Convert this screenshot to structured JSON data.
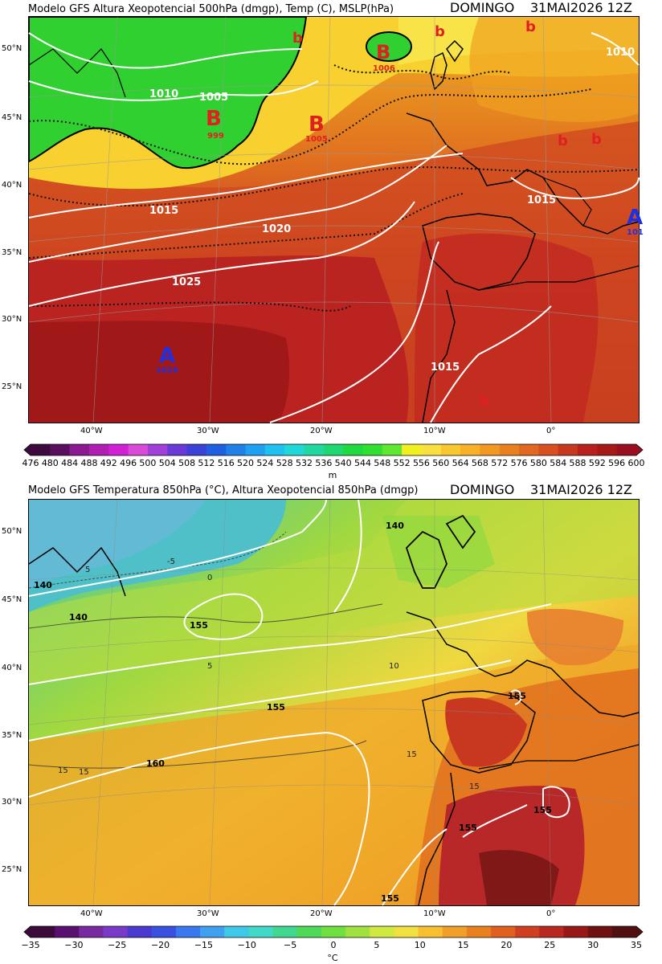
{
  "panels": [
    {
      "id": "z500",
      "left_title": "Modelo GFS   Altura Xeopotencial 500hPa (dmgp), Temp (C), MSLP(hPa)",
      "day": "DOMINGO",
      "date": "31MAI2026 12Z",
      "lat_labels": [
        "50°N",
        "45°N",
        "40°N",
        "35°N",
        "30°N",
        "25°N"
      ],
      "lon_labels": [
        "40°W",
        "30°W",
        "20°W",
        "10°W",
        "0°"
      ],
      "isobar_labels": [
        "1010",
        "1005",
        "1015",
        "1020",
        "1025",
        "1015",
        "1015",
        "1010"
      ],
      "pressure_centers": [
        {
          "letter": "B",
          "value": "999"
        },
        {
          "letter": "B",
          "value": "1005"
        },
        {
          "letter": "B",
          "value": "1006"
        },
        {
          "letter": "A",
          "value": "1019"
        },
        {
          "letter": "A",
          "value": "101"
        },
        {
          "letter": "b",
          "value": ""
        },
        {
          "letter": "b",
          "value": ""
        },
        {
          "letter": "b",
          "value": ""
        },
        {
          "letter": "b",
          "value": ""
        },
        {
          "letter": "b",
          "value": ""
        },
        {
          "letter": "b",
          "value": ""
        }
      ],
      "colorbar": {
        "ticks": [
          "476",
          "480",
          "484",
          "488",
          "492",
          "496",
          "500",
          "504",
          "508",
          "512",
          "516",
          "520",
          "524",
          "528",
          "532",
          "536",
          "540",
          "544",
          "548",
          "552",
          "556",
          "560",
          "564",
          "568",
          "572",
          "576",
          "580",
          "584",
          "588",
          "592",
          "596",
          "600"
        ],
        "unit": "m",
        "colors": [
          "#3d0a3e",
          "#5a0f5e",
          "#8a1a8e",
          "#b01eb4",
          "#d21fd6",
          "#d84ad8",
          "#a040d8",
          "#6a3ad8",
          "#3a40d8",
          "#2060e0",
          "#2080e8",
          "#20a0f0",
          "#20c0f0",
          "#20d8d8",
          "#20d8a0",
          "#20d870",
          "#20d840",
          "#30e030",
          "#60e830",
          "#f0f020",
          "#f8e040",
          "#f8c830",
          "#f8b028",
          "#f09820",
          "#e88020",
          "#e06820",
          "#d85020",
          "#c83820",
          "#b82020",
          "#a81818",
          "#981020"
        ]
      }
    },
    {
      "id": "t850",
      "left_title": "Modelo GFS   Temperatura 850hPa (°C), Altura Xeopotencial 850hPa (dmgp)",
      "day": "DOMINGO",
      "date": "31MAI2026 12Z",
      "lat_labels": [
        "50°N",
        "45°N",
        "40°N",
        "35°N",
        "30°N",
        "25°N"
      ],
      "lon_labels": [
        "40°W",
        "30°W",
        "20°W",
        "10°W",
        "0°"
      ],
      "contour_labels": [
        "140",
        "140",
        "140",
        "155",
        "155",
        "160",
        "155",
        "155",
        "155",
        "155",
        "-5",
        "5",
        "0",
        "5",
        "10",
        "15",
        "15",
        "15",
        "15"
      ],
      "colorbar": {
        "ticks": [
          "−35",
          "−30",
          "−25",
          "−20",
          "−15",
          "−10",
          "−5",
          "0",
          "5",
          "10",
          "15",
          "20",
          "25",
          "30",
          "35"
        ],
        "unit": "°C",
        "colors": [
          "#3a0a3a",
          "#5a1070",
          "#7a2aa0",
          "#7a3ac8",
          "#4a3ad0",
          "#3a50e0",
          "#3a78f0",
          "#40a0f0",
          "#40c8e8",
          "#40d8c8",
          "#40d890",
          "#50d858",
          "#70e040",
          "#a0e040",
          "#d0e840",
          "#f0e040",
          "#f8c030",
          "#f0a028",
          "#e88020",
          "#e06020",
          "#d04020",
          "#b82820",
          "#981818",
          "#701010",
          "#501010"
        ]
      }
    }
  ]
}
